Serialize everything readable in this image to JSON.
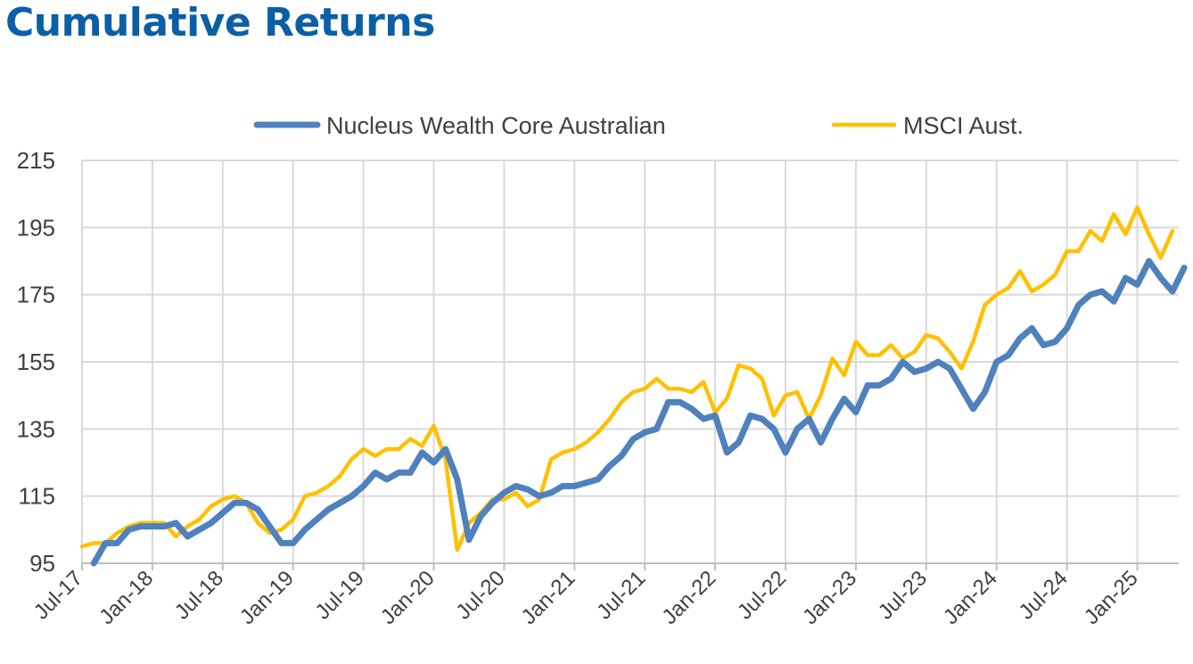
{
  "title": "Cumulative Returns",
  "chart_data": {
    "type": "line",
    "title": "Cumulative Returns",
    "xlabel": "",
    "ylabel": "",
    "ylim": [
      95,
      215
    ],
    "yticks": [
      "95",
      "115",
      "135",
      "155",
      "175",
      "195",
      "215"
    ],
    "xtick_labels": [
      "Jul-17",
      "Jan-18",
      "Jul-18",
      "Jan-19",
      "Jul-19",
      "Jan-20",
      "Jul-20",
      "Jan-21",
      "Jul-21",
      "Jan-22",
      "Jul-22",
      "Jan-23",
      "Jul-23",
      "Jan-24",
      "Jul-24",
      "Jan-25"
    ],
    "x_start": "Jul-17",
    "grid": true,
    "legend_position": "top",
    "series": [
      {
        "name": "Nucleus Wealth Core Australian",
        "color": "#4f81bd",
        "start_month": 1,
        "values": [
          95,
          101,
          101,
          105,
          106,
          106,
          106,
          107,
          103,
          105,
          107,
          110,
          113,
          113,
          111,
          106,
          101,
          101,
          105,
          108,
          111,
          113,
          115,
          118,
          122,
          120,
          122,
          122,
          128,
          125,
          129,
          120,
          102,
          109,
          113,
          116,
          118,
          117,
          115,
          116,
          118,
          118,
          119,
          120,
          124,
          127,
          132,
          134,
          135,
          143,
          143,
          141,
          138,
          139,
          128,
          131,
          139,
          138,
          135,
          128,
          135,
          138,
          131,
          138,
          144,
          140,
          148,
          148,
          150,
          155,
          152,
          153,
          155,
          153,
          147,
          141,
          146,
          155,
          157,
          162,
          165,
          160,
          161,
          165,
          172,
          175,
          176,
          173,
          180,
          178,
          185,
          180,
          176,
          183
        ]
      },
      {
        "name": "MSCI Aust.",
        "color": "#ffc000",
        "start_month": 0,
        "values": [
          100,
          101,
          101,
          104,
          106,
          107,
          107,
          107,
          103,
          106,
          108,
          112,
          114,
          115,
          113,
          107,
          104,
          105,
          108,
          115,
          116,
          118,
          121,
          126,
          129,
          127,
          129,
          129,
          132,
          130,
          136,
          126,
          99,
          107,
          110,
          114,
          114,
          116,
          112,
          114,
          126,
          128,
          129,
          131,
          134,
          138,
          143,
          146,
          147,
          150,
          147,
          147,
          146,
          149,
          140,
          144,
          154,
          153,
          150,
          139,
          145,
          146,
          138,
          145,
          156,
          151,
          161,
          157,
          157,
          160,
          156,
          158,
          163,
          162,
          158,
          153,
          161,
          172,
          175,
          177,
          182,
          176,
          178,
          181,
          188,
          188,
          194,
          191,
          199,
          193,
          201,
          193,
          186,
          194
        ]
      }
    ]
  }
}
